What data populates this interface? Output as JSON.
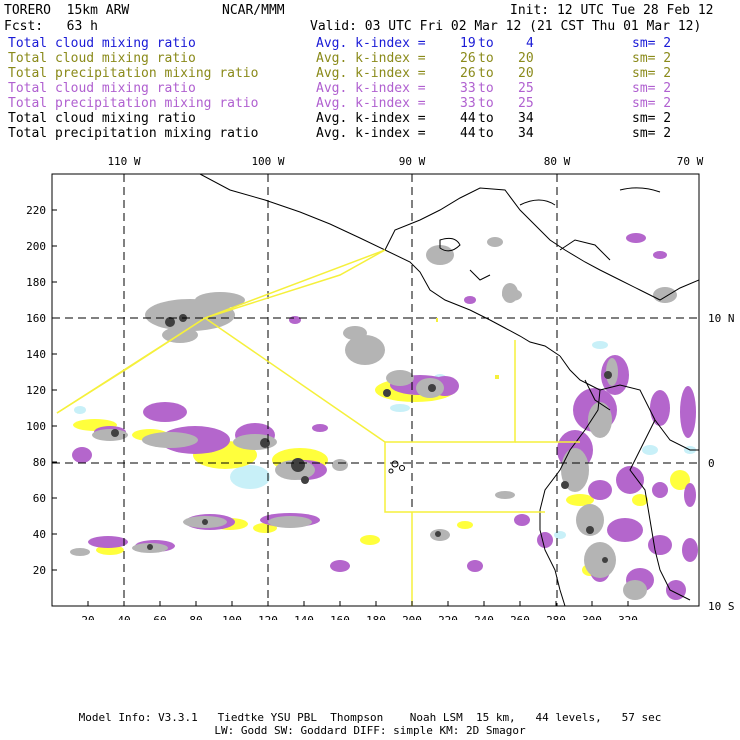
{
  "header": {
    "model": "TORERO  15km ARW",
    "org": "NCAR/MMM",
    "init": "Init: 12 UTC Tue 28 Feb 12",
    "fcst": "Fcst:   63 h",
    "valid": "Valid: 03 UTC Fri 02 Mar 12 (21 CST Thu 01 Mar 12)"
  },
  "legend": [
    {
      "field": "Total cloud mixing ratio",
      "avg": "Avg. k-index =",
      "k1": "19",
      "to": "to",
      "k2": "4",
      "sm": "sm= 2",
      "color": "#1a1ad6"
    },
    {
      "field": "Total cloud mixing ratio",
      "avg": "Avg. k-index =",
      "k1": "26",
      "to": "to",
      "k2": "20",
      "sm": "sm= 2",
      "color": "#8a8a1a"
    },
    {
      "field": "Total precipitation mixing ratio",
      "avg": "Avg. k-index =",
      "k1": "26",
      "to": "to",
      "k2": "20",
      "sm": "sm= 2",
      "color": "#8a8a1a"
    },
    {
      "field": "Total cloud mixing ratio",
      "avg": "Avg. k-index =",
      "k1": "33",
      "to": "to",
      "k2": "25",
      "sm": "sm= 2",
      "color": "#b060d0"
    },
    {
      "field": "Total precipitation mixing ratio",
      "avg": "Avg. k-index =",
      "k1": "33",
      "to": "to",
      "k2": "25",
      "sm": "sm= 2",
      "color": "#b060d0"
    },
    {
      "field": "Total cloud mixing ratio",
      "avg": "Avg. k-index =",
      "k1": "44",
      "to": "to",
      "k2": "34",
      "sm": "sm= 2",
      "color": "#000000"
    },
    {
      "field": "Total precipitation mixing ratio",
      "avg": "Avg. k-index =",
      "k1": "44",
      "to": "to",
      "k2": "34",
      "sm": "sm= 2",
      "color": "#000000"
    }
  ],
  "map": {
    "lon_labels": [
      "110 W",
      "100 W",
      "90 W",
      "80 W",
      "70 W"
    ],
    "lat_labels": [
      "10 N",
      "0",
      "10 S"
    ],
    "y_ticks": [
      "220",
      "200",
      "180",
      "160",
      "140",
      "120",
      "100",
      "80",
      "60",
      "40",
      "20"
    ],
    "x_ticks": [
      "20",
      "40",
      "60",
      "80",
      "100",
      "120",
      "140",
      "160",
      "180",
      "200",
      "220",
      "240",
      "260",
      "280",
      "300",
      "320"
    ],
    "colors": {
      "yellow": "#ffff3c",
      "purple": "#b466cc",
      "cyan": "#c8f0f8",
      "gray": "#b4b4b4",
      "box": "#f5f03c"
    }
  },
  "footer": {
    "line1": "Model Info: V3.3.1   Tiedtke YSU PBL  Thompson    Noah LSM  15 km,   44 levels,   57 sec",
    "line2": "LW: Godd SW: Goddard DIFF: simple KM: 2D Smagor"
  }
}
